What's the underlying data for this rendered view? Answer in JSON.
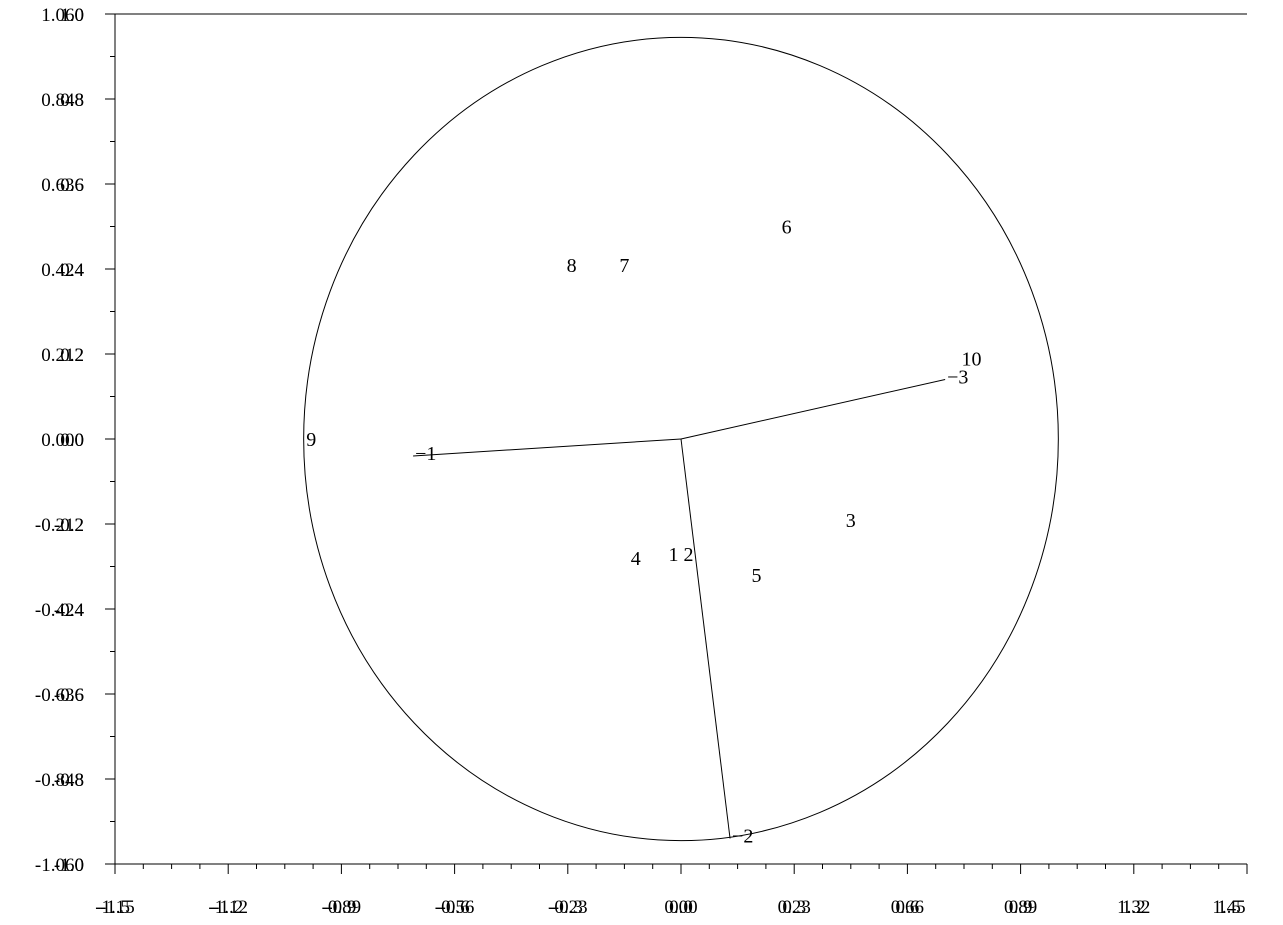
{
  "chart_data": {
    "type": "scatter",
    "title": "",
    "xlabel": "",
    "ylabel": "",
    "xlim": [
      -1.5,
      1.5
    ],
    "ylim": [
      -1.0,
      1.0
    ],
    "grid": false,
    "x_ticks_a": [
      "-1.5",
      "-1.2",
      "-0.9",
      "-0.6",
      "-0.3",
      "0.0",
      "0.3",
      "0.6",
      "0.9",
      "1.2",
      "1.5"
    ],
    "x_ticks_b": [
      "-1.15",
      "-1.12",
      "-0.89",
      "-0.56",
      "-0.23",
      "0.00",
      "0.23",
      "0.66",
      "0.89",
      "1.32",
      "1.45"
    ],
    "y_ticks_a": [
      "1.0",
      "0.8",
      "0.6",
      "0.4",
      "0.2",
      "0.0",
      "-0.2",
      "-0.4",
      "-0.6",
      "-0.8",
      "-1.0"
    ],
    "y_ticks_b": [
      "1.060",
      "0.848",
      "0.636",
      "0.424",
      "0.212",
      "0.000",
      "-0.212",
      "-0.424",
      "-0.636",
      "-0.848",
      "-1.060"
    ],
    "circle": {
      "cx": 0.0,
      "cy": 0.0,
      "rx": 1.0,
      "ry": 0.945
    },
    "vectors": [
      {
        "label": "1",
        "x": -0.71,
        "y": -0.04
      },
      {
        "label": "2",
        "x": 0.13,
        "y": -0.94
      },
      {
        "label": "3",
        "x": 0.7,
        "y": 0.14
      }
    ],
    "points": [
      {
        "label": "1",
        "x": -0.02,
        "y": -0.27
      },
      {
        "label": "2",
        "x": 0.02,
        "y": -0.27
      },
      {
        "label": "3",
        "x": 0.45,
        "y": -0.19
      },
      {
        "label": "4",
        "x": -0.12,
        "y": -0.28
      },
      {
        "label": "5",
        "x": 0.2,
        "y": -0.32
      },
      {
        "label": "6",
        "x": 0.28,
        "y": 0.5
      },
      {
        "label": "7",
        "x": -0.15,
        "y": 0.41
      },
      {
        "label": "8",
        "x": -0.29,
        "y": 0.41
      },
      {
        "label": "9",
        "x": -0.98,
        "y": 0.0
      },
      {
        "label": "10",
        "x": 0.77,
        "y": 0.19
      }
    ]
  }
}
